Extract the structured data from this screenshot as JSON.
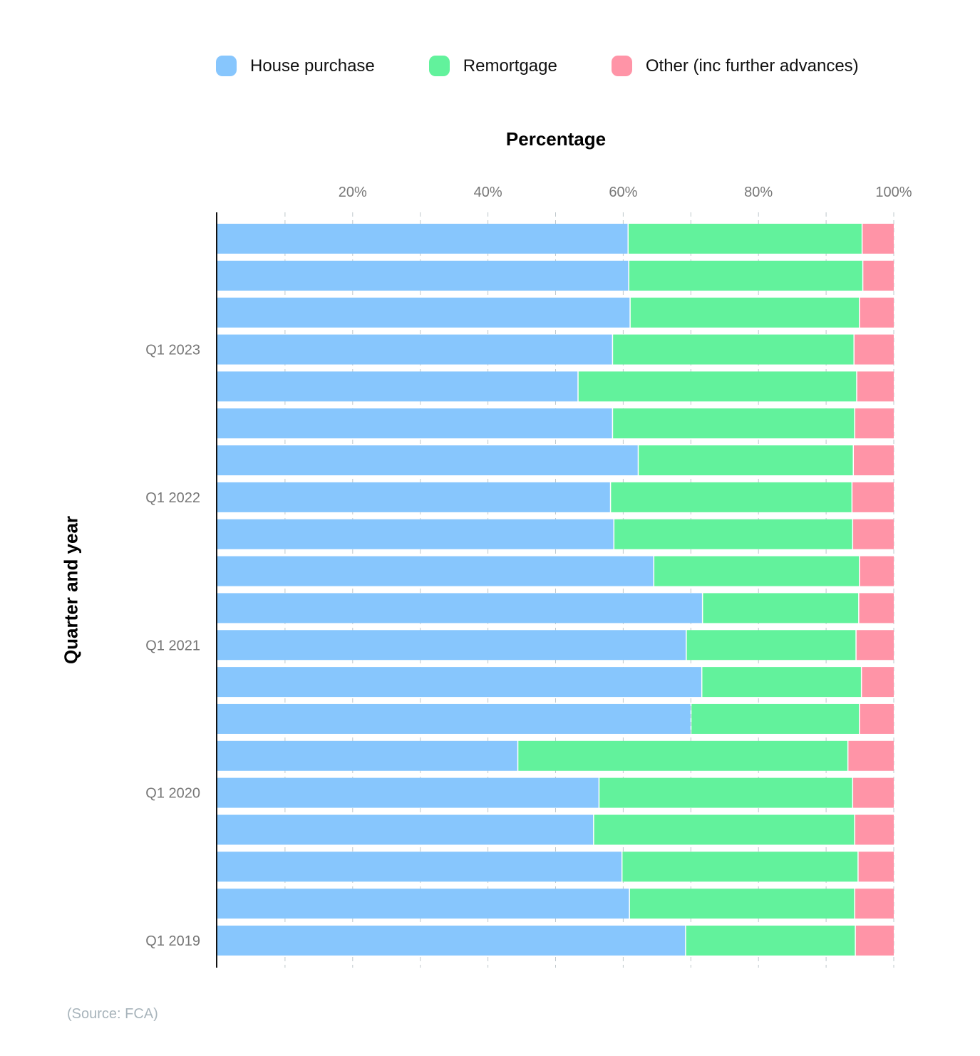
{
  "chart_data": {
    "type": "bar",
    "orientation": "horizontal",
    "stacked": true,
    "xlabel": "Percentage",
    "ylabel": "Quarter and year",
    "xlim": [
      0,
      100
    ],
    "x_ticks": [
      "20%",
      "40%",
      "60%",
      "80%",
      "100%"
    ],
    "grid": true,
    "legend_position": "top",
    "categories": [
      "Q1 2019",
      "",
      "",
      "",
      "Q1 2020",
      "",
      "",
      "",
      "Q1 2021",
      "",
      "",
      "",
      "Q1 2022",
      "",
      "",
      "",
      "Q1 2023",
      "",
      "",
      ""
    ],
    "series": [
      {
        "name": "House purchase",
        "color": "#87c6fd",
        "values": [
          69.3,
          61.0,
          59.9,
          55.7,
          56.5,
          44.5,
          70.1,
          71.7,
          69.4,
          71.8,
          64.6,
          58.7,
          58.2,
          62.3,
          58.5,
          53.4,
          58.5,
          61.1,
          60.9,
          60.8
        ]
      },
      {
        "name": "Remortgage",
        "color": "#62f29c",
        "values": [
          25.1,
          33.3,
          34.9,
          38.6,
          37.5,
          48.8,
          24.9,
          23.6,
          25.1,
          23.1,
          30.4,
          35.3,
          35.7,
          31.8,
          35.8,
          41.2,
          35.7,
          33.9,
          34.6,
          34.6
        ]
      },
      {
        "name": "Other (inc further advances)",
        "color": "#ff94a7",
        "values": [
          5.6,
          5.7,
          5.2,
          5.7,
          6.0,
          6.7,
          5.0,
          4.7,
          5.5,
          5.1,
          5.0,
          6.0,
          6.1,
          5.9,
          5.7,
          5.4,
          5.8,
          5.0,
          4.5,
          4.6
        ]
      }
    ]
  },
  "source": "(Source: FCA)"
}
